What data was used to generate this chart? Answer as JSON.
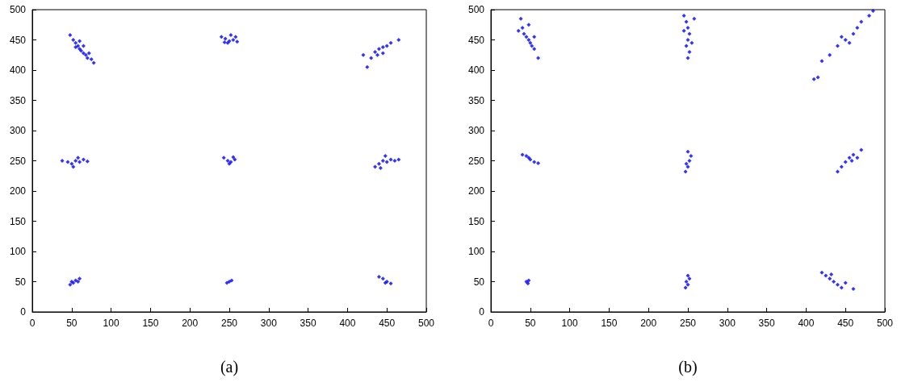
{
  "chart_data": [
    {
      "type": "scatter",
      "annotations": [
        "(a)"
      ],
      "marker": "diamond",
      "grid": false,
      "xlim": [
        0,
        500
      ],
      "ylim": [
        0,
        500
      ],
      "xticks": [
        0,
        50,
        100,
        150,
        200,
        250,
        300,
        350,
        400,
        450,
        500
      ],
      "yticks": [
        0,
        50,
        100,
        150,
        200,
        250,
        300,
        350,
        400,
        450,
        500
      ],
      "series": [
        {
          "color": "#0000ff",
          "x": [
            48,
            52,
            55,
            58,
            60,
            62,
            65,
            68,
            70,
            75,
            78,
            55,
            65,
            72,
            60,
            240,
            245,
            250,
            255,
            258,
            248,
            252,
            260,
            244,
            420,
            425,
            430,
            435,
            440,
            445,
            450,
            455,
            465,
            438,
            445,
            38,
            45,
            50,
            55,
            60,
            65,
            70,
            52,
            58,
            243,
            248,
            252,
            257,
            250,
            255,
            435,
            440,
            445,
            450,
            455,
            460,
            465,
            448,
            442,
            48,
            50,
            55,
            60,
            52,
            58,
            247,
            250,
            253,
            440,
            445,
            450,
            455,
            448
          ],
          "values": [
            458,
            450,
            445,
            440,
            435,
            432,
            428,
            425,
            420,
            418,
            412,
            438,
            440,
            428,
            448,
            455,
            452,
            448,
            450,
            455,
            445,
            458,
            447,
            446,
            425,
            405,
            420,
            430,
            435,
            438,
            440,
            445,
            450,
            425,
            428,
            250,
            248,
            245,
            250,
            248,
            252,
            249,
            240,
            255,
            255,
            250,
            248,
            252,
            245,
            256,
            240,
            245,
            250,
            248,
            252,
            250,
            252,
            258,
            238,
            45,
            50,
            52,
            55,
            48,
            50,
            48,
            50,
            52,
            58,
            55,
            50,
            47,
            48
          ]
        }
      ]
    },
    {
      "type": "scatter",
      "annotations": [
        "(b)"
      ],
      "marker": "diamond",
      "grid": false,
      "xlim": [
        0,
        500
      ],
      "ylim": [
        0,
        500
      ],
      "xticks": [
        0,
        50,
        100,
        150,
        200,
        250,
        300,
        350,
        400,
        450,
        500
      ],
      "yticks": [
        0,
        50,
        100,
        150,
        200,
        250,
        300,
        350,
        400,
        450,
        500
      ],
      "series": [
        {
          "color": "#0000ff",
          "x": [
            38,
            35,
            40,
            42,
            45,
            48,
            50,
            52,
            55,
            60,
            48,
            55,
            245,
            248,
            250,
            252,
            250,
            248,
            252,
            250,
            245,
            258,
            255,
            410,
            415,
            420,
            430,
            440,
            450,
            460,
            465,
            470,
            480,
            485,
            455,
            445,
            40,
            45,
            50,
            55,
            60,
            48,
            247,
            250,
            252,
            254,
            250,
            248,
            440,
            445,
            450,
            455,
            460,
            465,
            470,
            458,
            45,
            47,
            48,
            247,
            250,
            252,
            250,
            248,
            420,
            425,
            430,
            435,
            440,
            445,
            450,
            460,
            432
          ],
          "values": [
            485,
            465,
            470,
            460,
            455,
            450,
            445,
            440,
            435,
            420,
            475,
            455,
            490,
            480,
            470,
            460,
            450,
            440,
            430,
            420,
            465,
            485,
            445,
            385,
            388,
            415,
            425,
            440,
            450,
            460,
            470,
            480,
            490,
            498,
            445,
            455,
            260,
            258,
            252,
            248,
            246,
            255,
            232,
            240,
            250,
            258,
            265,
            245,
            232,
            240,
            248,
            255,
            260,
            255,
            268,
            250,
            50,
            47,
            52,
            40,
            45,
            55,
            60,
            50,
            65,
            60,
            55,
            50,
            45,
            40,
            48,
            38,
            62
          ]
        }
      ]
    }
  ]
}
